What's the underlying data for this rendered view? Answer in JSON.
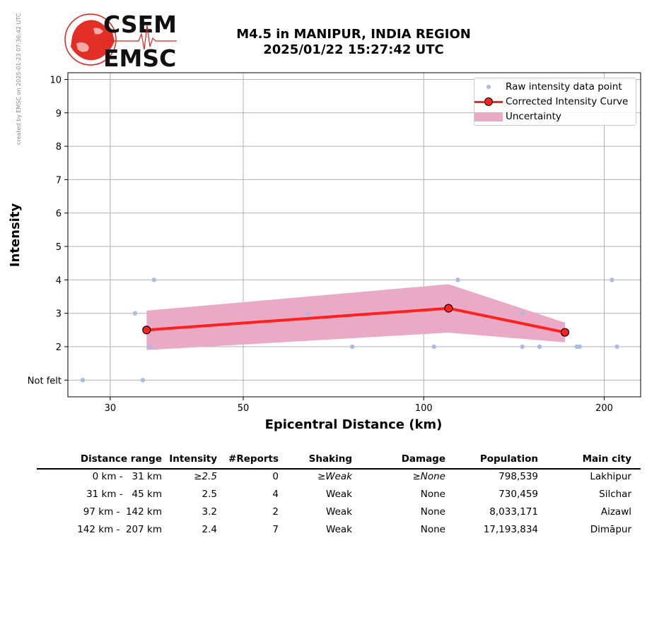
{
  "side_note": "created by EMSC on 2025-01-23 07:36:42 UTC",
  "logo": {
    "top_text": "CSEM",
    "bottom_text": "EMSC",
    "brand_color": "#e2231a"
  },
  "title": {
    "line1": "M4.5 in MANIPUR, INDIA REGION",
    "line2": "2025/01/22 15:27:42 UTC"
  },
  "chart_data": {
    "type": "scatter",
    "xlabel": "Epicentral Distance (km)",
    "ylabel": "Intensity",
    "x_scale": "log",
    "xlim": [
      25.5,
      230
    ],
    "ylim": [
      0.5,
      10.2
    ],
    "x_ticks": [
      30,
      50,
      100,
      200
    ],
    "y_ticks": [
      {
        "value": 1,
        "label": "Not felt"
      },
      {
        "value": 2,
        "label": "2"
      },
      {
        "value": 3,
        "label": "3"
      },
      {
        "value": 4,
        "label": "4"
      },
      {
        "value": 5,
        "label": "5"
      },
      {
        "value": 6,
        "label": "6"
      },
      {
        "value": 7,
        "label": "7"
      },
      {
        "value": 8,
        "label": "8"
      },
      {
        "value": 9,
        "label": "9"
      },
      {
        "value": 10,
        "label": "10"
      }
    ],
    "grid": true,
    "legend_position": "top-right",
    "legend": [
      "Raw intensity data point",
      "Corrected Intensity Curve",
      "Uncertainty"
    ],
    "raw_points": [
      {
        "x": 27,
        "y": 1
      },
      {
        "x": 33,
        "y": 3
      },
      {
        "x": 34,
        "y": 1
      },
      {
        "x": 35,
        "y": 2
      },
      {
        "x": 35.5,
        "y": 4
      },
      {
        "x": 64,
        "y": 3
      },
      {
        "x": 76,
        "y": 2
      },
      {
        "x": 104,
        "y": 2
      },
      {
        "x": 114,
        "y": 4
      },
      {
        "x": 146,
        "y": 3
      },
      {
        "x": 146,
        "y": 2
      },
      {
        "x": 156,
        "y": 2
      },
      {
        "x": 180,
        "y": 2
      },
      {
        "x": 182,
        "y": 2
      },
      {
        "x": 206,
        "y": 4
      },
      {
        "x": 210,
        "y": 2
      }
    ],
    "curve": [
      {
        "x": 34.5,
        "y": 2.5
      },
      {
        "x": 110,
        "y": 3.15
      },
      {
        "x": 172,
        "y": 2.43
      }
    ],
    "uncertainty": {
      "x": [
        34.5,
        110,
        172
      ],
      "upper": [
        3.08,
        3.87,
        2.72
      ],
      "lower": [
        1.9,
        2.42,
        2.13
      ]
    },
    "colors": {
      "raw": "#aabbe6",
      "curve": "#ff2020",
      "band": "#eaaac6",
      "grid": "#b0b0b0"
    }
  },
  "table": {
    "headers": [
      "Distance range",
      "Intensity",
      "#Reports",
      "Shaking",
      "Damage",
      "Population",
      "Main city"
    ],
    "rows": [
      {
        "range": "0 km -   31 km",
        "intensity": "≥2.5",
        "reports": "0",
        "shaking": "≥Weak",
        "damage": "≥None",
        "population": "798,539",
        "city": "Lakhipur"
      },
      {
        "range": "31 km -   45 km",
        "intensity": "2.5",
        "reports": "4",
        "shaking": "Weak",
        "damage": "None",
        "population": "730,459",
        "city": "Silchar"
      },
      {
        "range": "97 km -  142 km",
        "intensity": "3.2",
        "reports": "2",
        "shaking": "Weak",
        "damage": "None",
        "population": "8,033,171",
        "city": "Aizawl"
      },
      {
        "range": "142 km -  207 km",
        "intensity": "2.4",
        "reports": "7",
        "shaking": "Weak",
        "damage": "None",
        "population": "17,193,834",
        "city": "Dimāpur"
      }
    ]
  }
}
